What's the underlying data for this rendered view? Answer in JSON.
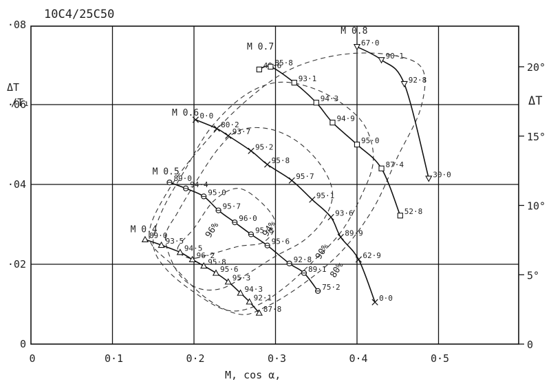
{
  "chart_data": {
    "type": "line",
    "title": "10C4/25C50",
    "xlabel": "M, cos α,",
    "ylabel": "ΔT/T1",
    "y2label": "ΔT",
    "xlim": [
      0,
      0.6
    ],
    "ylim": [
      0,
      0.08
    ],
    "y2lim": [
      0,
      23
    ],
    "grid": true,
    "x_ticks": [
      {
        "v": 0,
        "label": "0"
      },
      {
        "v": 0.1,
        "label": "0·1"
      },
      {
        "v": 0.2,
        "label": "0·2"
      },
      {
        "v": 0.3,
        "label": "0·3"
      },
      {
        "v": 0.4,
        "label": "0·4"
      },
      {
        "v": 0.5,
        "label": "0·5"
      }
    ],
    "y_ticks": [
      {
        "v": 0,
        "label": "0"
      },
      {
        "v": 0.02,
        "label": "·02"
      },
      {
        "v": 0.04,
        "label": "·04"
      },
      {
        "v": 0.06,
        "label": "·06"
      },
      {
        "v": 0.08,
        "label": "·08"
      }
    ],
    "y2_ticks": [
      {
        "v": 0,
        "label": "0"
      },
      {
        "v": 5,
        "label": "5°"
      },
      {
        "v": 10,
        "label": "10°"
      },
      {
        "v": 15,
        "label": "15°"
      },
      {
        "v": 20,
        "label": "20°"
      }
    ],
    "series": [
      {
        "name": "M 0.4",
        "marker": "triangle-up",
        "label_at": {
          "x": 0.122,
          "y": 0.028
        },
        "points": [
          {
            "x": 0.14,
            "y": 0.0262,
            "label": "89·0"
          },
          {
            "x": 0.16,
            "y": 0.0248,
            "label": "93·5"
          },
          {
            "x": 0.183,
            "y": 0.023,
            "label": "94·5"
          },
          {
            "x": 0.198,
            "y": 0.0212,
            "label": "96·2"
          },
          {
            "x": 0.212,
            "y": 0.0196,
            "label": "95·8"
          },
          {
            "x": 0.227,
            "y": 0.0178,
            "label": "95·6"
          },
          {
            "x": 0.242,
            "y": 0.0156,
            "label": "95·3"
          },
          {
            "x": 0.257,
            "y": 0.0128,
            "label": "94·3"
          },
          {
            "x": 0.268,
            "y": 0.0106,
            "label": "92·1"
          },
          {
            "x": 0.28,
            "y": 0.0078,
            "label": "87·8"
          }
        ]
      },
      {
        "name": "M 0.5",
        "marker": "circle-cross",
        "label_at": {
          "x": 0.149,
          "y": 0.0425
        },
        "points": [
          {
            "x": 0.17,
            "y": 0.0405,
            "label": "89·0"
          },
          {
            "x": 0.19,
            "y": 0.039,
            "label": "94·4"
          },
          {
            "x": 0.212,
            "y": 0.037,
            "label": "95·0"
          },
          {
            "x": 0.23,
            "y": 0.0335,
            "label": "95·7"
          },
          {
            "x": 0.25,
            "y": 0.0305,
            "label": "96·0"
          },
          {
            "x": 0.27,
            "y": 0.0275,
            "label": "95·8"
          },
          {
            "x": 0.29,
            "y": 0.0247,
            "label": "95·6"
          },
          {
            "x": 0.317,
            "y": 0.0202,
            "label": "92·8"
          },
          {
            "x": 0.335,
            "y": 0.0178,
            "label": "89·1"
          },
          {
            "x": 0.352,
            "y": 0.0133,
            "label": "75·2"
          }
        ]
      },
      {
        "name": "M 0.6",
        "marker": "x-cross",
        "label_at": {
          "x": 0.173,
          "y": 0.0572
        },
        "points": [
          {
            "x": 0.202,
            "y": 0.0562,
            "label": "0·0"
          },
          {
            "x": 0.228,
            "y": 0.054,
            "label": "80·2"
          },
          {
            "x": 0.242,
            "y": 0.0522,
            "label": "93·7"
          },
          {
            "x": 0.27,
            "y": 0.0484,
            "label": "95·2"
          },
          {
            "x": 0.29,
            "y": 0.045,
            "label": "95·8"
          },
          {
            "x": 0.32,
            "y": 0.041,
            "label": "95·7"
          },
          {
            "x": 0.345,
            "y": 0.0362,
            "label": "95·1"
          },
          {
            "x": 0.368,
            "y": 0.0318,
            "label": "93·6"
          },
          {
            "x": 0.38,
            "y": 0.0268,
            "label": "89·9"
          },
          {
            "x": 0.402,
            "y": 0.0212,
            "label": "62·9"
          },
          {
            "x": 0.422,
            "y": 0.0105,
            "label": "0·0"
          }
        ]
      },
      {
        "name": "M 0.7",
        "marker": "square",
        "label_at": {
          "x": 0.265,
          "y": 0.0738
        },
        "points": [
          {
            "x": 0.28,
            "y": 0.0688,
            "label": "49·6"
          },
          {
            "x": 0.294,
            "y": 0.0695,
            "label": "85·8"
          },
          {
            "x": 0.323,
            "y": 0.0655,
            "label": "93·1"
          },
          {
            "x": 0.35,
            "y": 0.0605,
            "label": "94·3"
          },
          {
            "x": 0.37,
            "y": 0.0555,
            "label": "94·9"
          },
          {
            "x": 0.4,
            "y": 0.05,
            "label": "95·0"
          },
          {
            "x": 0.43,
            "y": 0.044,
            "label": "87·4"
          },
          {
            "x": 0.453,
            "y": 0.0322,
            "label": "52·8"
          }
        ]
      },
      {
        "name": "M 0.8",
        "marker": "triangle-down",
        "label_at": {
          "x": 0.38,
          "y": 0.0778
        },
        "points": [
          {
            "x": 0.4,
            "y": 0.0745,
            "label": "67·0"
          },
          {
            "x": 0.43,
            "y": 0.0712,
            "label": "90·1"
          },
          {
            "x": 0.458,
            "y": 0.0652,
            "label": "92·8"
          },
          {
            "x": 0.488,
            "y": 0.0415,
            "label": "30·0"
          }
        ]
      }
    ],
    "efficiency_contours": [
      {
        "label": "96%",
        "label_at": {
          "x": 0.225,
          "y": 0.0282
        },
        "points": [
          [
            0.18,
            0.024
          ],
          [
            0.2,
            0.029
          ],
          [
            0.225,
            0.036
          ],
          [
            0.255,
            0.039
          ],
          [
            0.285,
            0.035
          ],
          [
            0.3,
            0.03
          ],
          [
            0.285,
            0.0255
          ],
          [
            0.255,
            0.0245
          ],
          [
            0.22,
            0.0225
          ],
          [
            0.195,
            0.0215
          ],
          [
            0.18,
            0.024
          ]
        ]
      },
      {
        "label": "94%",
        "label_at": {
          "x": 0.295,
          "y": 0.0285
        },
        "points": [
          [
            0.165,
            0.0265
          ],
          [
            0.18,
            0.033
          ],
          [
            0.205,
            0.0415
          ],
          [
            0.23,
            0.049
          ],
          [
            0.255,
            0.0535
          ],
          [
            0.29,
            0.054
          ],
          [
            0.325,
            0.051
          ],
          [
            0.355,
            0.045
          ],
          [
            0.37,
            0.038
          ],
          [
            0.36,
            0.0315
          ],
          [
            0.335,
            0.026
          ],
          [
            0.3,
            0.022
          ],
          [
            0.265,
            0.0175
          ],
          [
            0.235,
            0.014
          ],
          [
            0.205,
            0.014
          ],
          [
            0.18,
            0.018
          ],
          [
            0.165,
            0.0265
          ]
        ]
      },
      {
        "label": "90%",
        "label_at": {
          "x": 0.36,
          "y": 0.0228
        },
        "points": [
          [
            0.15,
            0.025
          ],
          [
            0.16,
            0.033
          ],
          [
            0.19,
            0.044
          ],
          [
            0.22,
            0.054
          ],
          [
            0.26,
            0.062
          ],
          [
            0.3,
            0.0655
          ],
          [
            0.34,
            0.0645
          ],
          [
            0.38,
            0.0605
          ],
          [
            0.41,
            0.0545
          ],
          [
            0.42,
            0.046
          ],
          [
            0.405,
            0.037
          ],
          [
            0.38,
            0.028
          ],
          [
            0.345,
            0.0205
          ],
          [
            0.31,
            0.014
          ],
          [
            0.275,
            0.0095
          ],
          [
            0.24,
            0.0085
          ],
          [
            0.2,
            0.013
          ],
          [
            0.165,
            0.019
          ],
          [
            0.15,
            0.025
          ]
        ]
      },
      {
        "label": "80%",
        "label_at": {
          "x": 0.378,
          "y": 0.0182
        },
        "points": [
          [
            0.145,
            0.027
          ],
          [
            0.17,
            0.039
          ],
          [
            0.22,
            0.052
          ],
          [
            0.27,
            0.062
          ],
          [
            0.32,
            0.069
          ],
          [
            0.38,
            0.0725
          ],
          [
            0.44,
            0.0725
          ],
          [
            0.48,
            0.069
          ],
          [
            0.478,
            0.059
          ],
          [
            0.45,
            0.047
          ],
          [
            0.42,
            0.034
          ],
          [
            0.38,
            0.023
          ],
          [
            0.33,
            0.0145
          ],
          [
            0.285,
            0.009
          ],
          [
            0.255,
            0.0075
          ],
          [
            0.215,
            0.0115
          ],
          [
            0.175,
            0.0195
          ],
          [
            0.145,
            0.027
          ]
        ]
      }
    ]
  }
}
